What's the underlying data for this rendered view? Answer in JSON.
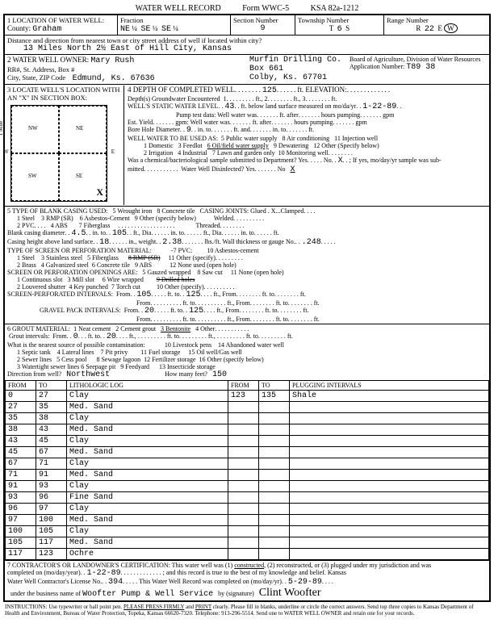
{
  "form": {
    "title": "WATER WELL RECORD",
    "form_no": "Form WWC-5",
    "ksa": "KSA 82a-1212"
  },
  "loc": {
    "county": "Graham",
    "frac1": "NE",
    "frac2": "SE",
    "frac3": "SE",
    "section": "9",
    "township": "6",
    "township_dir": "S",
    "range": "22",
    "range_dir": "W",
    "distance": "13 Miles North   2½ East of Hill City, Kansas"
  },
  "owner": {
    "name": "Mary Rush",
    "driller": "Murfin Drilling Co.",
    "rr": "",
    "box": "Box 661",
    "city": "Edmund, Ks. 67636",
    "driller_city": "Colby, Ks. 67701",
    "board": "Board of Agriculture, Division of Water Resources",
    "app_no": "T89 38"
  },
  "depth": {
    "completed": "125",
    "gw_enc": "1",
    "static": "43",
    "static_date": "1-22-89",
    "bore_dia": "9",
    "use_checked": "6 Oil/field water supply"
  },
  "casing": {
    "joints": "Glued . X",
    "dia": "4.5",
    "dia_to": "105",
    "height": "18",
    "weight": "2.38",
    "gauge": ".248",
    "screen_from": "105",
    "screen_to": "125",
    "gravel_from": "20",
    "gravel_to": "125"
  },
  "grout": {
    "from": "0",
    "to": "20",
    "type": "3 Bentonite",
    "dir": "Northwest",
    "feet": "150"
  },
  "litho": {
    "headers": [
      "FROM",
      "TO",
      "LITHOLOGIC LOG",
      "FROM",
      "TO",
      "PLUGGING INTERVALS"
    ],
    "rows": [
      [
        "0",
        "27",
        "Clay",
        "123",
        "135",
        "Shale"
      ],
      [
        "27",
        "35",
        "Med. Sand",
        "",
        "",
        ""
      ],
      [
        "35",
        "38",
        "Clay",
        "",
        "",
        ""
      ],
      [
        "38",
        "43",
        "Med. Sand",
        "",
        "",
        ""
      ],
      [
        "43",
        "45",
        "Clay",
        "",
        "",
        ""
      ],
      [
        "45",
        "67",
        "Med. Sand",
        "",
        "",
        ""
      ],
      [
        "67",
        "71",
        "Clay",
        "",
        "",
        ""
      ],
      [
        "71",
        "91",
        "Med. Sand",
        "",
        "",
        ""
      ],
      [
        "91",
        "93",
        "Clay",
        "",
        "",
        ""
      ],
      [
        "93",
        "96",
        "Fine Sand",
        "",
        "",
        ""
      ],
      [
        "96",
        "97",
        "Clay",
        "",
        "",
        ""
      ],
      [
        "97",
        "100",
        "Med. Sand",
        "",
        "",
        ""
      ],
      [
        "100",
        "105",
        "Clay",
        "",
        "",
        ""
      ],
      [
        "105",
        "117",
        "Med. Sand",
        "",
        "",
        ""
      ],
      [
        "117",
        "123",
        "Ochre",
        "",
        "",
        ""
      ]
    ]
  },
  "cert": {
    "completed_date": "1-22-89",
    "license": "394",
    "record_date": "5-29-89",
    "business": "Woofter Pump & Well Service"
  }
}
